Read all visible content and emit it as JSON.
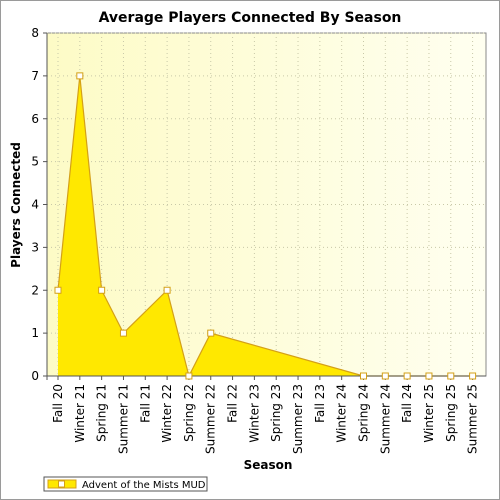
{
  "chart_data": {
    "type": "area",
    "title": "Average Players Connected By Season",
    "xlabel": "Season",
    "ylabel": "Players Connected",
    "ylim": [
      0,
      8
    ],
    "yticks": [
      0,
      1,
      2,
      3,
      4,
      5,
      6,
      7,
      8
    ],
    "grid": true,
    "legend_position": "bottom-left",
    "categories": [
      "Fall 20",
      "Winter 21",
      "Spring 21",
      "Summer 21",
      "Fall 21",
      "Winter 22",
      "Spring 22",
      "Summer 22",
      "Fall 22",
      "Winter 23",
      "Spring 23",
      "Summer 23",
      "Fall 23",
      "Winter 24",
      "Spring 24",
      "Summer 24",
      "Fall 24",
      "Winter 25",
      "Spring 25",
      "Summer 25"
    ],
    "series": [
      {
        "name": "Advent of the Mists MUD",
        "color": "#ffe800",
        "line_color": "#d4a017",
        "points": [
          {
            "category": "Fall 20",
            "value": 2
          },
          {
            "category": "Winter 21",
            "value": 7
          },
          {
            "category": "Spring 21",
            "value": 2
          },
          {
            "category": "Summer 21",
            "value": 1
          },
          {
            "category": "Winter 22",
            "value": 2
          },
          {
            "category": "Spring 22",
            "value": 0
          },
          {
            "category": "Summer 22",
            "value": 1
          },
          {
            "category": "Spring 24",
            "value": 0
          },
          {
            "category": "Summer 24",
            "value": 0
          },
          {
            "category": "Fall 24",
            "value": 0
          },
          {
            "category": "Winter 25",
            "value": 0
          },
          {
            "category": "Spring 25",
            "value": 0
          },
          {
            "category": "Summer 25",
            "value": 0
          }
        ]
      }
    ]
  }
}
